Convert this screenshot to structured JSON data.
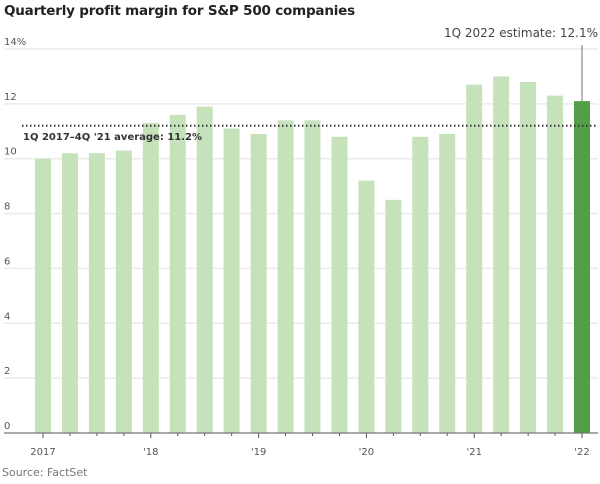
{
  "chart_data": {
    "type": "bar",
    "title": "Quarterly profit margin for S&P 500 companies",
    "source": "Source: FactSet",
    "xlabel": "",
    "ylabel": "",
    "ylim": [
      0,
      14
    ],
    "yticks": [
      0,
      2,
      4,
      6,
      8,
      10,
      12,
      14
    ],
    "ytick_labels": [
      "0",
      "2",
      "4",
      "6",
      "8",
      "10",
      "12",
      "14%"
    ],
    "categories": [
      "1Q17",
      "2Q17",
      "3Q17",
      "4Q17",
      "1Q18",
      "2Q18",
      "3Q18",
      "4Q18",
      "1Q19",
      "2Q19",
      "3Q19",
      "4Q19",
      "1Q20",
      "2Q20",
      "3Q20",
      "4Q20",
      "1Q21",
      "2Q21",
      "3Q21",
      "4Q21",
      "1Q22"
    ],
    "values": [
      10.0,
      10.2,
      10.2,
      10.3,
      11.3,
      11.6,
      11.9,
      11.1,
      10.9,
      11.4,
      11.4,
      10.8,
      9.2,
      8.5,
      10.8,
      10.9,
      12.7,
      13.0,
      12.8,
      12.3,
      12.1
    ],
    "highlight_index": 20,
    "xtick_labels": [
      {
        "index": 0,
        "label": "2017"
      },
      {
        "index": 4,
        "label": "'18"
      },
      {
        "index": 8,
        "label": "'19"
      },
      {
        "index": 12,
        "label": "'20"
      },
      {
        "index": 16,
        "label": "'21"
      },
      {
        "index": 20,
        "label": "'22"
      }
    ],
    "average": {
      "value": 11.2,
      "label": "1Q 2017–4Q '21 average: 11.2%"
    },
    "annotation": "1Q 2022 estimate: 12.1%",
    "colors": {
      "bar": "#c6e2bb",
      "highlight": "#52a046",
      "grid": "#ebebeb"
    },
    "grid": true
  }
}
